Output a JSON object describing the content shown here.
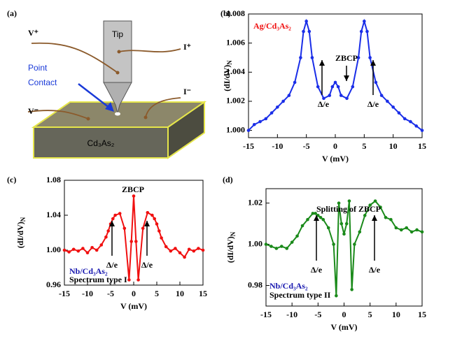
{
  "diagram": {
    "texts": [
      "(a)",
      "Tip",
      "V⁺",
      "I⁺",
      "Point",
      "Contact",
      "I⁻",
      "V⁻",
      "Cd₃As₂"
    ]
  },
  "chart_data": [
    {
      "type": "line",
      "label": "(b)",
      "x_label": "V (mV)",
      "y_label": {
        "text": "(dI/dV)",
        "sub": "N"
      },
      "color": "#1a2ee8",
      "annotations": [
        "Ag/Cd₃As₂",
        "ZBCP",
        "Δ/e",
        "Δ/e"
      ],
      "x": [
        -15,
        -14,
        -13,
        -12,
        -11,
        -10,
        -9,
        -8,
        -7,
        -6,
        -5.5,
        -5,
        -4.5,
        -4,
        -3,
        -2,
        -1,
        -0.5,
        0,
        0.5,
        1,
        2,
        3,
        4,
        4.5,
        5,
        5.5,
        6,
        7,
        8,
        9,
        10,
        11,
        12,
        13,
        14,
        15
      ],
      "values": [
        1.0,
        1.0004,
        1.0006,
        1.0008,
        1.0012,
        1.0016,
        1.002,
        1.0024,
        1.0033,
        1.005,
        1.0068,
        1.0075,
        1.0068,
        1.005,
        1.003,
        1.0022,
        1.0024,
        1.003,
        1.0033,
        1.003,
        1.0024,
        1.0022,
        1.003,
        1.005,
        1.0068,
        1.0075,
        1.0068,
        1.005,
        1.0033,
        1.0024,
        1.002,
        1.0016,
        1.0012,
        1.0008,
        1.0006,
        1.0003,
        1.0
      ],
      "xlim": [
        -15,
        15
      ],
      "xticks": [
        -15,
        -10,
        -5,
        0,
        5,
        10,
        15
      ],
      "ylim": [
        0.9995,
        1.008
      ],
      "yticks": [
        {
          "value": 1.0,
          "label": "1.000"
        },
        {
          "value": 1.002,
          "label": "1.002"
        },
        {
          "value": 1.004,
          "label": "1.004"
        },
        {
          "value": 1.006,
          "label": "1.006"
        },
        {
          "value": 1.008,
          "label": "1.008"
        }
      ]
    },
    {
      "type": "line",
      "label": "(c)",
      "x_label": "V (mV)",
      "y_label": {
        "text": "(dI/dV)",
        "sub": "N"
      },
      "color": "#f01010",
      "annotations": [
        "ZBCP",
        "Δ/e",
        "Δ/e",
        "Nb/Cd₃As₂",
        "Spectrum type I"
      ],
      "x": [
        -15,
        -14,
        -13,
        -12,
        -11,
        -10,
        -9,
        -8,
        -7,
        -6,
        -5.5,
        -5,
        -4.5,
        -4,
        -3,
        -2,
        -1,
        -0.5,
        0,
        0.5,
        1,
        2,
        3,
        4,
        4.5,
        5,
        5.5,
        6,
        7,
        8,
        9,
        10,
        11,
        12,
        13,
        14,
        15
      ],
      "values": [
        1.0,
        0.998,
        1.001,
        0.999,
        1.002,
        0.997,
        1.003,
        1.0,
        1.006,
        1.015,
        1.022,
        1.03,
        1.036,
        1.04,
        1.042,
        1.025,
        0.966,
        1.01,
        1.062,
        1.01,
        0.966,
        1.025,
        1.043,
        1.04,
        1.036,
        1.03,
        1.022,
        1.014,
        1.004,
        0.999,
        1.002,
        0.997,
        0.992,
        1.001,
        0.999,
        1.002,
        1.0
      ],
      "xlim": [
        -15,
        15
      ],
      "xticks": [
        -15,
        -10,
        -5,
        0,
        5,
        10,
        15
      ],
      "ylim": [
        0.96,
        1.08
      ],
      "yticks": [
        {
          "value": 0.96,
          "label": "0.96"
        },
        {
          "value": 1.0,
          "label": "1.00"
        },
        {
          "value": 1.04,
          "label": "1.04"
        },
        {
          "value": 1.08,
          "label": "1.08"
        }
      ]
    },
    {
      "type": "line",
      "label": "(d)",
      "x_label": "V (mV)",
      "y_label": {
        "text": "(dI/dV)",
        "sub": "N"
      },
      "color": "#1a8a1a",
      "annotations": [
        "Splitting of ZBCP",
        "Δ/e",
        "Δ/e",
        "Nb/Cd₃As₂",
        "Spectrum type II"
      ],
      "x": [
        -15,
        -14,
        -13,
        -12,
        -11,
        -10,
        -9,
        -8,
        -7,
        -6,
        -5.5,
        -5,
        -4.5,
        -4,
        -3,
        -2,
        -1.5,
        -1,
        -0.5,
        0,
        0.5,
        1,
        1.5,
        2,
        3,
        4,
        5,
        6,
        7,
        8,
        9,
        10,
        11,
        12,
        13,
        14,
        15
      ],
      "values": [
        1.0,
        0.999,
        0.998,
        0.999,
        0.998,
        1.001,
        1.004,
        1.009,
        1.012,
        1.015,
        1.015,
        1.014,
        1.013,
        1.012,
        1.008,
        1.0,
        0.975,
        1.02,
        1.01,
        1.005,
        1.01,
        1.021,
        0.978,
        1.0,
        1.006,
        1.014,
        1.019,
        1.021,
        1.018,
        1.013,
        1.012,
        1.008,
        1.007,
        1.008,
        1.006,
        1.007,
        1.006
      ],
      "xlim": [
        -15,
        15
      ],
      "xticks": [
        -15,
        -10,
        -5,
        0,
        5,
        10,
        15
      ],
      "ylim": [
        0.97,
        1.027
      ],
      "yticks": [
        {
          "value": 0.98,
          "label": "0.98"
        },
        {
          "value": 1.0,
          "label": "1.00"
        },
        {
          "value": 1.02,
          "label": "1.02"
        }
      ]
    }
  ]
}
